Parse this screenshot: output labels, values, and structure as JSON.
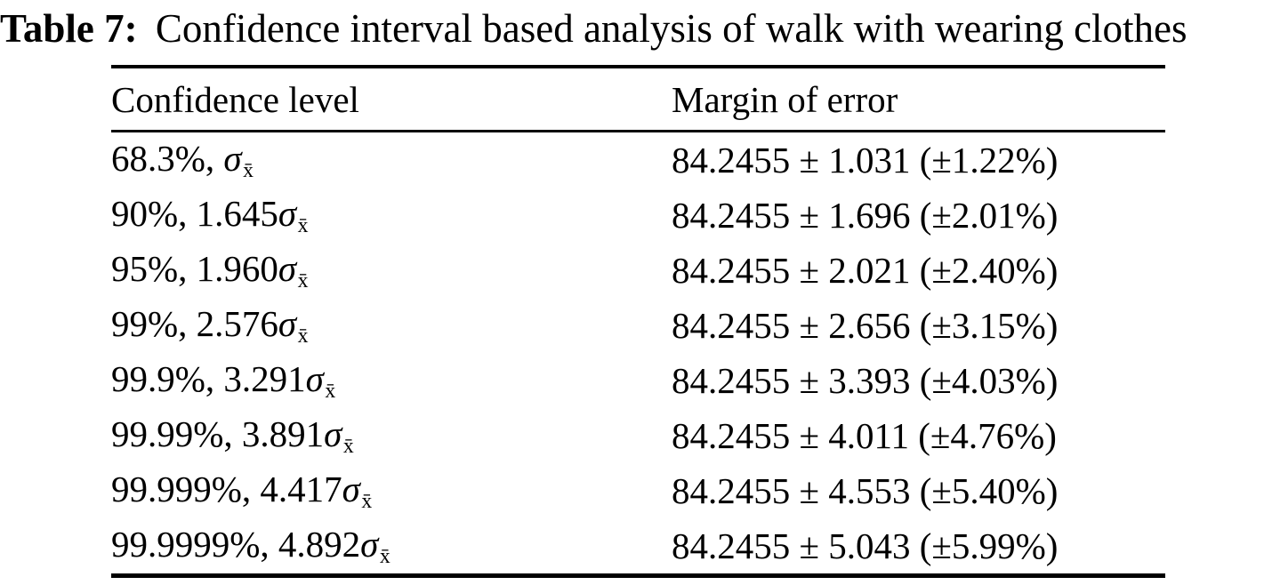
{
  "colors": {
    "background": "#ffffff",
    "text": "#000000",
    "rule": "#000000"
  },
  "caption": {
    "label": "Table 7:",
    "text": "Confidence interval based analysis of walk with wearing clothes"
  },
  "table": {
    "headers": [
      "Confidence level",
      "Margin of error"
    ],
    "sigma_symbol": "σ",
    "sigma_subscript": "x̄",
    "rows": [
      {
        "level_prefix": "68.3%, ",
        "margin": "84.2455 ± 1.031 (±1.22%)"
      },
      {
        "level_prefix": "90%, 1.645",
        "margin": "84.2455 ± 1.696 (±2.01%)"
      },
      {
        "level_prefix": "95%, 1.960",
        "margin": "84.2455 ± 2.021 (±2.40%)"
      },
      {
        "level_prefix": "99%, 2.576",
        "margin": "84.2455 ± 2.656 (±3.15%)"
      },
      {
        "level_prefix": "99.9%, 3.291",
        "margin": "84.2455 ± 3.393 (±4.03%)"
      },
      {
        "level_prefix": "99.99%, 3.891",
        "margin": "84.2455 ± 4.011 (±4.76%)"
      },
      {
        "level_prefix": "99.999%, 4.417",
        "margin": "84.2455 ± 4.553 (±5.40%)"
      },
      {
        "level_prefix": "99.9999%, 4.892",
        "margin": "84.2455 ± 5.043 (±5.99%)"
      }
    ]
  }
}
